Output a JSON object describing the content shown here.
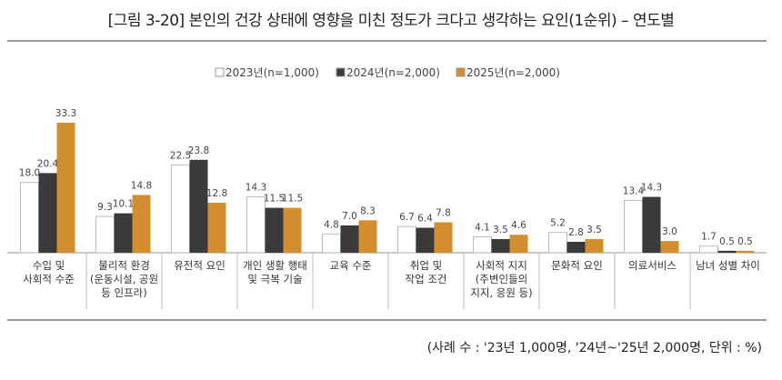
{
  "chart_data": {
    "type": "bar",
    "title": "[그림 3-20]  본인의 건강 상태에 영향을 미친 정도가 크다고 생각하는 요인(1순위) – 연도별",
    "xlabel": "",
    "ylabel": "",
    "ylim": [
      0,
      35
    ],
    "grid": false,
    "legend_position": "top-center",
    "categories": [
      [
        "수입 및",
        "사회적 수준"
      ],
      [
        "물리적 환경",
        "(운동시설, 공원",
        "등 인프라)"
      ],
      [
        "유전적 요인"
      ],
      [
        "개인 생활 행태",
        "및 극복 기술"
      ],
      [
        "교육 수준"
      ],
      [
        "취업 및",
        "작업 조건"
      ],
      [
        "사회적 지지",
        "(주변인들의",
        "지지, 응원 등)"
      ],
      [
        "문화적 요인"
      ],
      [
        "의료서비스"
      ],
      [
        "남녀 성별 차이"
      ]
    ],
    "series": [
      {
        "name": "2023년(n=1,000)",
        "color": "#ffffff",
        "values": [
          18.0,
          9.3,
          22.5,
          14.3,
          4.8,
          6.7,
          4.1,
          5.2,
          13.4,
          1.7
        ]
      },
      {
        "name": "2024년(n=2,000)",
        "color": "#3a3a3a",
        "values": [
          20.4,
          10.1,
          23.8,
          11.5,
          7.0,
          6.4,
          3.5,
          2.8,
          14.3,
          0.5
        ]
      },
      {
        "name": "2025년(n=2,000)",
        "color": "#d38f2f",
        "values": [
          33.3,
          14.8,
          12.8,
          11.5,
          8.3,
          7.8,
          4.6,
          3.5,
          3.0,
          0.5
        ]
      }
    ],
    "note": "(사례 수 : '23년 1,000명, '24년~'25년 2,000명, 단위 : %)"
  }
}
